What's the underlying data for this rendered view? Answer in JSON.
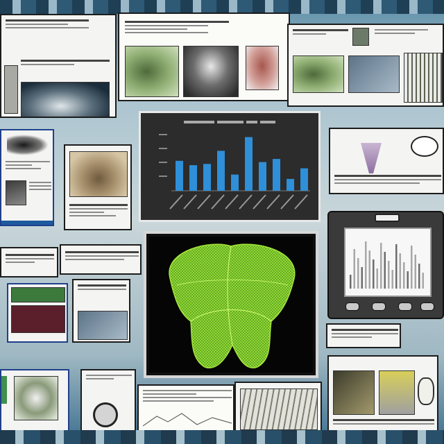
{
  "colors": {
    "accent_blue": "#2f8fd8",
    "mesh_green": "#8fd12a",
    "chart_bg": "#2c2c2c",
    "panel_bg": "#f4f4f2"
  },
  "icons": [
    "magnifier-icon",
    "speech-bubble-icon",
    "funnel-icon"
  ]
}
